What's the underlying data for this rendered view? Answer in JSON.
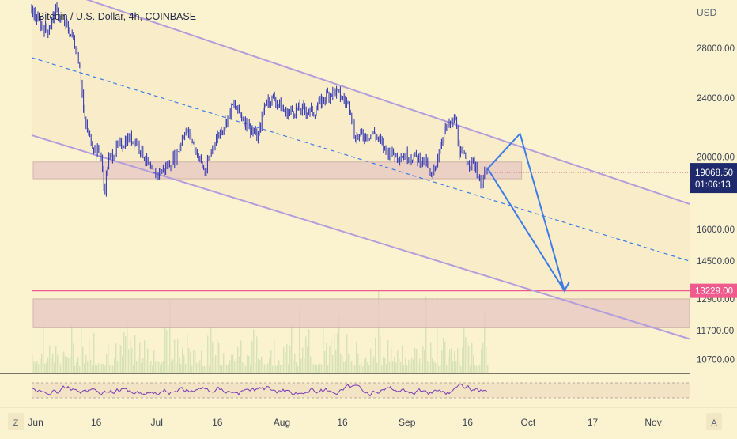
{
  "header": {
    "title": "Bitcoin / U.S. Dollar, 4h, COINBASE"
  },
  "currency": "USD",
  "price_axis": {
    "ticks": [
      "28000.00",
      "24000.00",
      "20000.00",
      "16000.00",
      "14500.00",
      "12900.00",
      "11700.00",
      "10700.00"
    ]
  },
  "last_price": {
    "value": "19068.50",
    "countdown": "01:06:13",
    "color": "#1e2a6b"
  },
  "target_price": {
    "value": "13229.00",
    "color": "#f05a8c"
  },
  "time_axis": {
    "labels": [
      "Jun",
      "16",
      "Jul",
      "16",
      "Aug",
      "16",
      "Sep",
      "16",
      "Oct",
      "17",
      "Nov"
    ]
  },
  "corner_buttons": {
    "left": "Z",
    "right": "A"
  },
  "colors": {
    "background": "#fbf3d0",
    "channel_line": "#b39ddb",
    "channel_fill": "#f8ebc8",
    "midline": "#3d7be6",
    "zone_fill": "#e8c9c4",
    "candles": "#2a2fb0",
    "projection": "#3d7be6",
    "rsi": "#7b3bb5",
    "volume": "#c8dca8"
  },
  "chart_data": {
    "type": "candlestick",
    "title": "Bitcoin / U.S. Dollar, 4h, COINBASE",
    "ylabel": "USD",
    "yscale": "log",
    "ylim": [
      10300,
      32500
    ],
    "xlim": [
      "2022-05-31",
      "2022-11-10"
    ],
    "price_path": [
      [
        "2022-05-31",
        31500
      ],
      [
        "2022-06-02",
        30200
      ],
      [
        "2022-06-04",
        29600
      ],
      [
        "2022-06-06",
        31400
      ],
      [
        "2022-06-08",
        30300
      ],
      [
        "2022-06-10",
        29100
      ],
      [
        "2022-06-11",
        28000
      ],
      [
        "2022-06-12",
        26500
      ],
      [
        "2022-06-13",
        22500
      ],
      [
        "2022-06-14",
        21500
      ],
      [
        "2022-06-15",
        20900
      ],
      [
        "2022-06-16",
        20300
      ],
      [
        "2022-06-17",
        20500
      ],
      [
        "2022-06-18",
        17900
      ],
      [
        "2022-06-19",
        19800
      ],
      [
        "2022-06-21",
        20500
      ],
      [
        "2022-06-24",
        21200
      ],
      [
        "2022-06-26",
        21000
      ],
      [
        "2022-06-28",
        20000
      ],
      [
        "2022-06-30",
        18800
      ],
      [
        "2022-07-03",
        19300
      ],
      [
        "2022-07-06",
        20200
      ],
      [
        "2022-07-08",
        21800
      ],
      [
        "2022-07-10",
        20900
      ],
      [
        "2022-07-13",
        19000
      ],
      [
        "2022-07-15",
        20800
      ],
      [
        "2022-07-18",
        22300
      ],
      [
        "2022-07-20",
        23500
      ],
      [
        "2022-07-22",
        22700
      ],
      [
        "2022-07-26",
        21200
      ],
      [
        "2022-07-28",
        23800
      ],
      [
        "2022-07-30",
        24000
      ],
      [
        "2022-08-02",
        22900
      ],
      [
        "2022-08-05",
        23200
      ],
      [
        "2022-08-09",
        23000
      ],
      [
        "2022-08-12",
        24200
      ],
      [
        "2022-08-14",
        24600
      ],
      [
        "2022-08-16",
        24000
      ],
      [
        "2022-08-18",
        23300
      ],
      [
        "2022-08-19",
        21300
      ],
      [
        "2022-08-24",
        21500
      ],
      [
        "2022-08-27",
        20300
      ],
      [
        "2022-08-30",
        20100
      ],
      [
        "2022-09-01",
        20100
      ],
      [
        "2022-09-04",
        19900
      ],
      [
        "2022-09-06",
        19600
      ],
      [
        "2022-09-07",
        18600
      ],
      [
        "2022-09-08",
        19400
      ],
      [
        "2022-09-10",
        21600
      ],
      [
        "2022-09-12",
        22200
      ],
      [
        "2022-09-13",
        22500
      ],
      [
        "2022-09-14",
        20200
      ],
      [
        "2022-09-16",
        19800
      ],
      [
        "2022-09-18",
        19500
      ],
      [
        "2022-09-19",
        18400
      ],
      [
        "2022-09-20",
        18800
      ],
      [
        "2022-09-21",
        19068.5
      ]
    ],
    "channel": {
      "upper": [
        [
          "2022-06-02",
          34200
        ],
        [
          "2022-11-10",
          17300
        ]
      ],
      "lower": [
        [
          "2022-05-31",
          21400
        ],
        [
          "2022-11-10",
          11400
        ]
      ],
      "midline": [
        [
          "2022-05-31",
          27200
        ],
        [
          "2022-11-10",
          14500
        ]
      ]
    },
    "support_zone": {
      "from": 18700,
      "to": 19700
    },
    "target_zone": {
      "from": 11800,
      "to": 12900
    },
    "target_level": 13229,
    "projection_path": [
      [
        "2022-09-21",
        19300
      ],
      [
        "2022-09-29",
        21500
      ],
      [
        "2022-10-10",
        13229
      ],
      [
        "2022-09-21",
        19300
      ],
      [
        "2022-10-10",
        13229
      ]
    ],
    "rsi": {
      "upper_band": 70,
      "lower_band": 30
    }
  }
}
